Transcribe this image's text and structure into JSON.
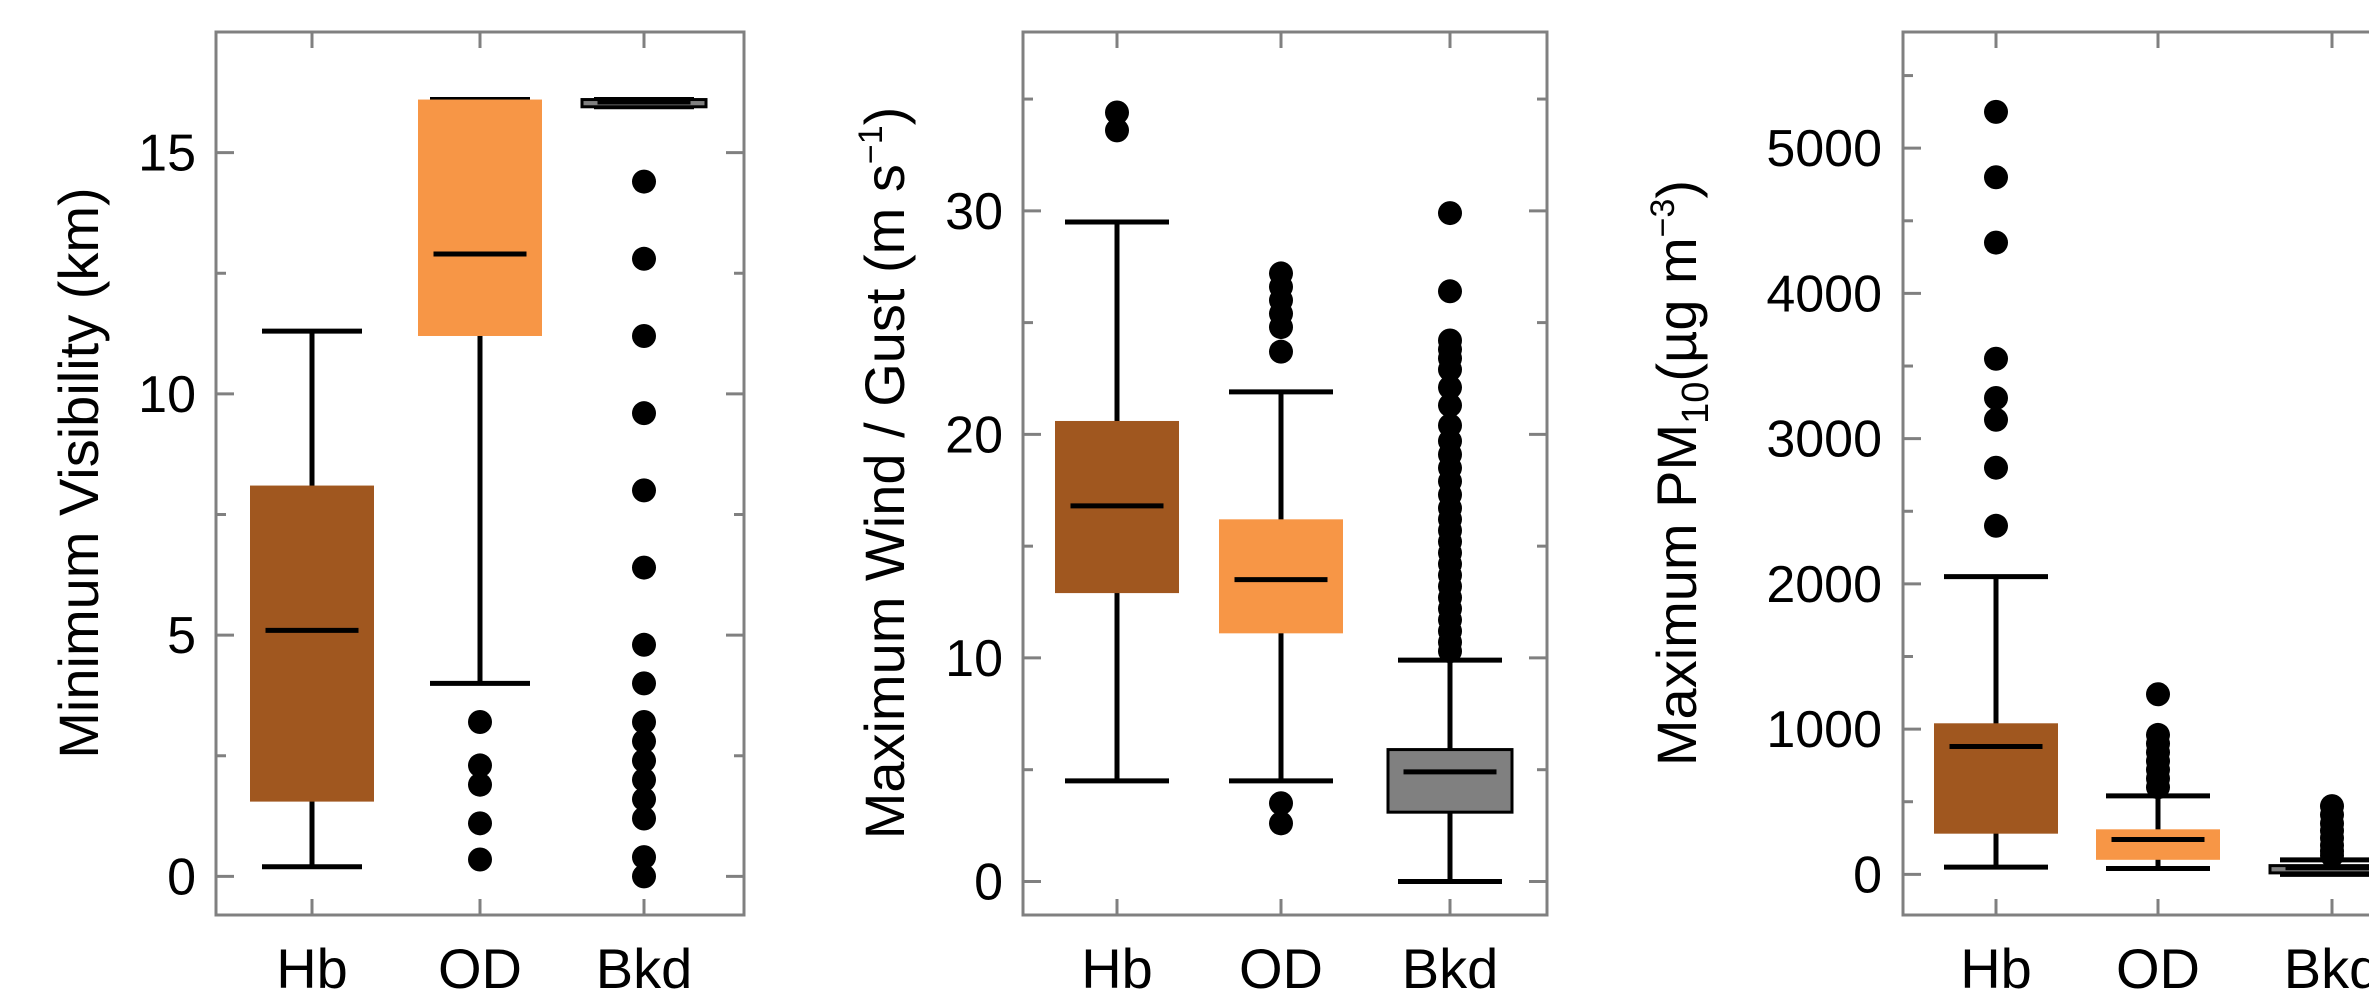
{
  "chart_data": [
    {
      "type": "box",
      "ylabel": "Minimum Visibility (km)",
      "categories": [
        "Hb",
        "OD",
        "Bkd"
      ],
      "ylim": [
        -0.8,
        17.5
      ],
      "yticks": [
        0,
        5,
        10,
        15
      ],
      "ytick_labels": [
        "0",
        "5",
        "10",
        "15"
      ],
      "grid": false,
      "colors": {
        "Hb": "#A0571F",
        "OD": "#F79646",
        "Bkd": "#808080"
      },
      "series": [
        {
          "category": "Hb",
          "whisker_low": 0.2,
          "q1": 1.55,
          "median": 5.1,
          "q3": 8.1,
          "whisker_high": 11.3,
          "outliers": []
        },
        {
          "category": "OD",
          "whisker_low": 4.0,
          "q1": 11.2,
          "median": 12.9,
          "q3": 16.1,
          "whisker_high": 16.1,
          "outliers": [
            3.2,
            2.3,
            1.9,
            1.1,
            0.35
          ]
        },
        {
          "category": "Bkd",
          "whisker_low": 15.95,
          "q1": 15.95,
          "median": 16.05,
          "q3": 16.1,
          "whisker_high": 16.1,
          "outliers": [
            14.4,
            12.8,
            11.2,
            9.6,
            8.0,
            6.4,
            4.8,
            4.0,
            3.2,
            2.8,
            2.4,
            2.0,
            1.6,
            1.2,
            0.4,
            0.0
          ]
        }
      ]
    },
    {
      "type": "box",
      "ylabel": "Maximum Wind / Gust (m s⁻¹)",
      "ylabel_main": "Maximum Wind / Gust (m s",
      "ylabel_sup": "−1",
      "ylabel_end": ")",
      "categories": [
        "Hb",
        "OD",
        "Bkd"
      ],
      "ylim": [
        -1.5,
        38
      ],
      "yticks": [
        0,
        10,
        20,
        30
      ],
      "ytick_labels": [
        "0",
        "10",
        "20",
        "30"
      ],
      "grid": false,
      "colors": {
        "Hb": "#A0571F",
        "OD": "#F79646",
        "Bkd": "#808080"
      },
      "series": [
        {
          "category": "Hb",
          "whisker_low": 4.5,
          "q1": 12.9,
          "median": 16.8,
          "q3": 20.6,
          "whisker_high": 29.5,
          "outliers": [
            34.4,
            33.6
          ]
        },
        {
          "category": "OD",
          "whisker_low": 4.5,
          "q1": 11.1,
          "median": 13.5,
          "q3": 16.2,
          "whisker_high": 21.9,
          "outliers": [
            27.2,
            26.6,
            26.0,
            25.4,
            24.8,
            23.7,
            3.5,
            2.6
          ]
        },
        {
          "category": "Bkd",
          "whisker_low": 0.0,
          "q1": 3.1,
          "median": 4.9,
          "q3": 5.9,
          "whisker_high": 9.9,
          "outliers": [
            29.9,
            26.4,
            24.2,
            23.8,
            23.4,
            22.9,
            22.1,
            21.3,
            20.4,
            19.7,
            19.1,
            18.5,
            17.9,
            17.3,
            16.7,
            16.2,
            15.7,
            15.2,
            14.7,
            14.2,
            13.7,
            13.2,
            12.7,
            12.2,
            11.7,
            11.2,
            10.7,
            10.3
          ]
        }
      ]
    },
    {
      "type": "box",
      "ylabel": "Maximum PM10 (µg m⁻³)",
      "ylabel_main": "Maximum PM",
      "ylabel_sub": "10",
      "ylabel_mid": "(µg m",
      "ylabel_sup": "−3",
      "ylabel_end": ")",
      "categories": [
        "Hb",
        "OD",
        "Bkd"
      ],
      "ylim": [
        -280,
        5800
      ],
      "yticks": [
        0,
        1000,
        2000,
        3000,
        4000,
        5000
      ],
      "ytick_labels": [
        "0",
        "1000",
        "2000",
        "3000",
        "4000",
        "5000"
      ],
      "grid": false,
      "colors": {
        "Hb": "#A0571F",
        "OD": "#F79646",
        "Bkd": "#808080"
      },
      "series": [
        {
          "category": "Hb",
          "whisker_low": 50,
          "q1": 280,
          "median": 880,
          "q3": 1040,
          "whisker_high": 2050,
          "outliers": [
            5250,
            4800,
            4350,
            3550,
            3280,
            3130,
            2800,
            2400
          ]
        },
        {
          "category": "OD",
          "whisker_low": 40,
          "q1": 100,
          "median": 240,
          "q3": 310,
          "whisker_high": 540,
          "outliers": [
            1240,
            960,
            900,
            840,
            780,
            720,
            660,
            600
          ]
        },
        {
          "category": "Bkd",
          "whisker_low": 0,
          "q1": 10,
          "median": 45,
          "q3": 60,
          "whisker_high": 100,
          "outliers": [
            470,
            410,
            350,
            300,
            250,
            200,
            160,
            130
          ]
        }
      ]
    }
  ]
}
